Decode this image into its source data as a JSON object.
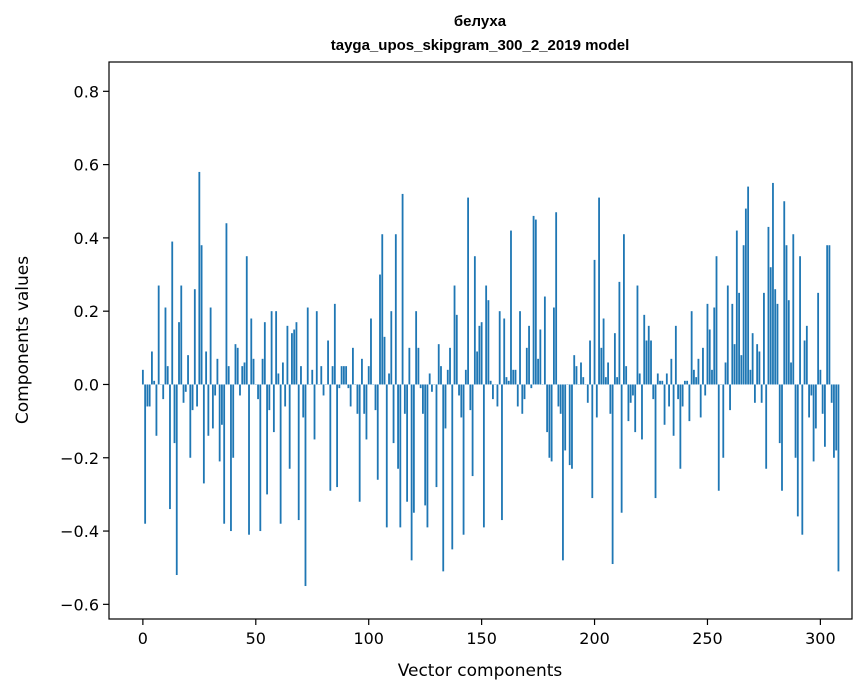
{
  "chart_data": {
    "type": "bar",
    "title": "белуха",
    "subtitle": "tayga_upos_skipgram_300_2_2019 model",
    "xlabel": "Vector components",
    "ylabel": "Components values",
    "xlim": [
      -15,
      314
    ],
    "ylim": [
      -0.64,
      0.88
    ],
    "xticks": [
      0,
      50,
      100,
      150,
      200,
      250,
      300
    ],
    "yticks": [
      -0.6,
      -0.4,
      -0.2,
      0.0,
      0.2,
      0.4,
      0.6,
      0.8
    ],
    "xtick_labels": [
      "0",
      "50",
      "100",
      "150",
      "200",
      "250",
      "300"
    ],
    "ytick_labels": [
      "−0.6",
      "−0.4",
      "−0.2",
      "0.0",
      "0.2",
      "0.4",
      "0.6",
      "0.8"
    ],
    "grid": false,
    "bar_color": "#1f77b4",
    "values": [
      0.04,
      -0.38,
      -0.06,
      -0.06,
      0.09,
      0.01,
      -0.14,
      0.27,
      0.0,
      -0.04,
      0.21,
      0.05,
      -0.34,
      0.39,
      -0.16,
      -0.52,
      0.17,
      0.27,
      -0.05,
      -0.02,
      0.08,
      -0.2,
      -0.07,
      0.26,
      -0.06,
      0.58,
      0.38,
      -0.27,
      0.09,
      -0.14,
      0.21,
      -0.12,
      -0.03,
      0.07,
      -0.21,
      -0.11,
      -0.38,
      0.44,
      0.05,
      -0.4,
      -0.2,
      0.11,
      0.1,
      -0.03,
      0.05,
      0.06,
      0.35,
      -0.41,
      0.18,
      0.07,
      0.0,
      -0.04,
      -0.4,
      0.07,
      0.17,
      -0.3,
      -0.07,
      0.2,
      -0.13,
      0.2,
      0.03,
      -0.38,
      0.06,
      -0.06,
      0.16,
      -0.23,
      0.14,
      0.15,
      0.17,
      -0.37,
      0.05,
      -0.09,
      -0.55,
      0.21,
      0.0,
      0.04,
      -0.15,
      0.2,
      0.0,
      0.05,
      -0.03,
      0.0,
      0.12,
      -0.29,
      0.05,
      0.22,
      -0.28,
      -0.01,
      0.05,
      0.05,
      0.05,
      -0.01,
      -0.06,
      0.1,
      0.0,
      -0.08,
      -0.32,
      0.07,
      -0.08,
      -0.15,
      0.05,
      0.18,
      0.0,
      -0.07,
      -0.26,
      0.3,
      0.41,
      0.13,
      -0.39,
      0.03,
      0.2,
      -0.16,
      0.41,
      -0.23,
      -0.39,
      0.52,
      -0.08,
      -0.32,
      0.1,
      -0.48,
      -0.35,
      0.2,
      0.1,
      -0.01,
      -0.08,
      -0.33,
      -0.39,
      0.03,
      -0.02,
      0.0,
      -0.28,
      0.11,
      0.05,
      -0.51,
      -0.12,
      0.04,
      0.1,
      -0.45,
      0.27,
      0.19,
      -0.03,
      -0.09,
      -0.41,
      0.04,
      0.51,
      -0.07,
      -0.25,
      0.35,
      0.09,
      0.16,
      0.17,
      -0.39,
      0.27,
      0.23,
      0.01,
      -0.04,
      0.0,
      -0.06,
      0.2,
      -0.37,
      0.18,
      0.02,
      0.01,
      0.42,
      0.04,
      0.04,
      -0.06,
      0.2,
      -0.08,
      -0.04,
      0.1,
      0.16,
      -0.01,
      0.46,
      0.45,
      0.07,
      0.15,
      0.0,
      0.24,
      -0.13,
      -0.2,
      -0.21,
      0.21,
      0.47,
      -0.06,
      -0.08,
      -0.48,
      -0.18,
      0.0,
      -0.22,
      -0.23,
      0.08,
      0.05,
      0.0,
      0.06,
      0.02,
      0.0,
      -0.05,
      0.12,
      -0.31,
      0.34,
      -0.09,
      0.51,
      0.1,
      0.18,
      0.02,
      0.06,
      -0.08,
      -0.49,
      0.14,
      0.02,
      0.28,
      -0.35,
      0.41,
      0.05,
      -0.1,
      -0.05,
      -0.03,
      -0.13,
      0.27,
      0.03,
      -0.15,
      0.19,
      0.12,
      0.16,
      0.12,
      -0.04,
      -0.31,
      0.03,
      0.01,
      0.01,
      -0.11,
      0.03,
      -0.06,
      0.07,
      -0.14,
      0.16,
      -0.04,
      -0.23,
      -0.06,
      0.01,
      0.01,
      -0.1,
      0.2,
      0.04,
      0.02,
      0.07,
      -0.09,
      0.1,
      -0.03,
      0.22,
      0.15,
      0.04,
      0.21,
      0.35,
      -0.29,
      0.0,
      -0.2,
      0.06,
      0.27,
      -0.07,
      0.22,
      0.11,
      0.42,
      0.25,
      0.08,
      0.38,
      0.48,
      0.54,
      0.04,
      0.14,
      -0.05,
      0.11,
      0.09,
      -0.05,
      0.25,
      -0.23,
      0.43,
      0.32,
      0.55,
      0.26,
      0.22,
      -0.16,
      -0.29,
      0.5,
      0.38,
      0.23,
      0.06,
      0.41,
      -0.2,
      -0.36,
      0.35,
      -0.41,
      0.12,
      0.16,
      -0.09,
      -0.03,
      -0.21,
      -0.12,
      0.25,
      0.04,
      -0.08,
      -0.17,
      0.38,
      0.38,
      -0.05,
      -0.2,
      -0.18,
      -0.51
    ]
  }
}
